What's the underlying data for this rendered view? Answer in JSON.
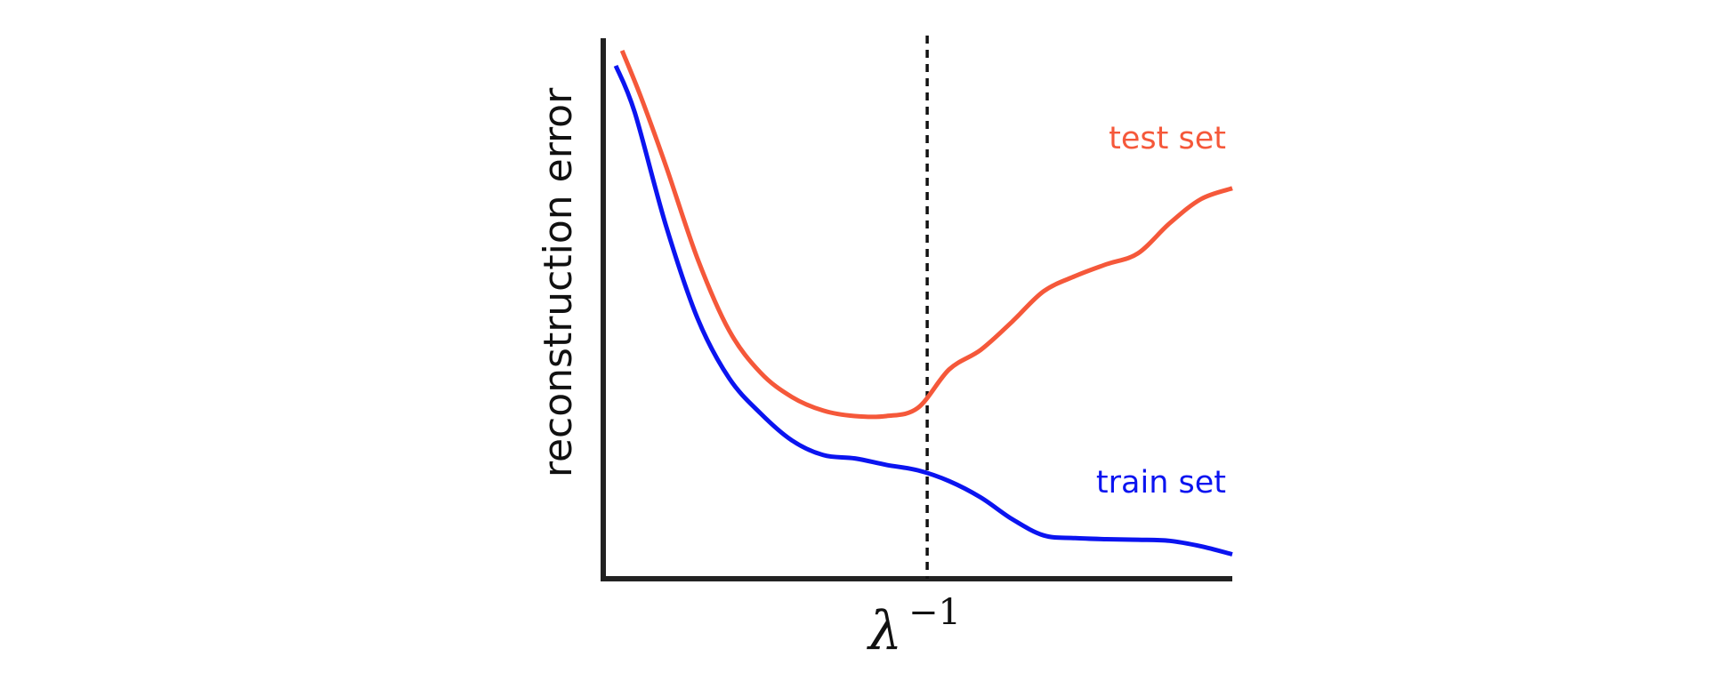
{
  "chart_data": {
    "type": "line",
    "title": "",
    "ylabel": "reconstruction error",
    "xlabel": {
      "base": "λ",
      "exponent": "−1"
    },
    "xlim": [
      0,
      1
    ],
    "ylim": [
      0,
      1
    ],
    "grid": false,
    "legend": "inline labels at right end of each series",
    "reference_line": {
      "style": "dashed",
      "x": 0.515
    },
    "series": [
      {
        "name": "test set",
        "color": "#f5583a",
        "x": [
          0.03,
          0.06,
          0.1,
          0.15,
          0.2,
          0.25,
          0.3,
          0.35,
          0.4,
          0.45,
          0.5,
          0.55,
          0.6,
          0.65,
          0.7,
          0.75,
          0.8,
          0.85,
          0.9,
          0.95,
          1.0
        ],
        "y": [
          0.974,
          0.888,
          0.76,
          0.59,
          0.458,
          0.38,
          0.335,
          0.31,
          0.3,
          0.3,
          0.315,
          0.386,
          0.422,
          0.474,
          0.53,
          0.558,
          0.58,
          0.6,
          0.655,
          0.7,
          0.72
        ]
      },
      {
        "name": "train set",
        "color": "#0b14f0",
        "x": [
          0.02,
          0.05,
          0.1,
          0.15,
          0.2,
          0.25,
          0.3,
          0.35,
          0.4,
          0.45,
          0.5,
          0.55,
          0.6,
          0.65,
          0.7,
          0.75,
          0.8,
          0.85,
          0.9,
          0.95,
          1.0
        ],
        "y": [
          0.946,
          0.86,
          0.65,
          0.48,
          0.37,
          0.305,
          0.255,
          0.228,
          0.222,
          0.21,
          0.2,
          0.18,
          0.15,
          0.11,
          0.08,
          0.075,
          0.073,
          0.072,
          0.07,
          0.06,
          0.045
        ]
      }
    ]
  }
}
